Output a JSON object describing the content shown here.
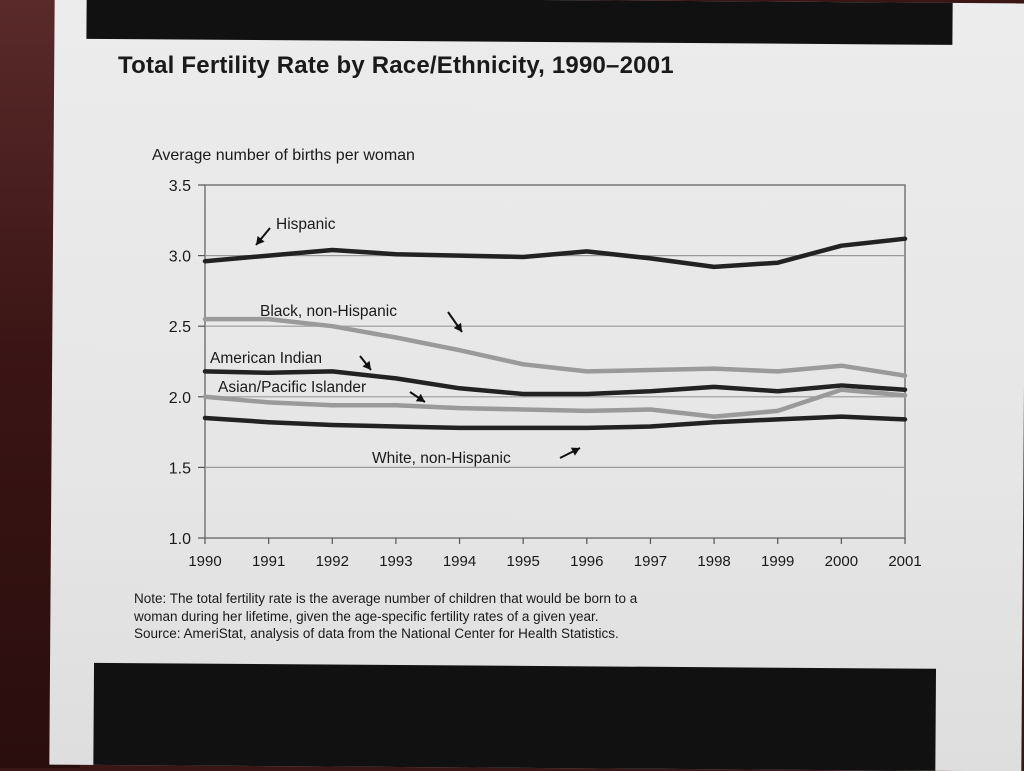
{
  "chart_data": {
    "type": "line",
    "title": "Total Fertility Rate by Race/Ethnicity, 1990–2001",
    "ylabel": "Average number of births per woman",
    "xlabel": "",
    "ylim": [
      1.0,
      3.5
    ],
    "yticks": [
      "1.0",
      "1.5",
      "2.0",
      "2.5",
      "3.0",
      "3.5"
    ],
    "categories": [
      "1990",
      "1991",
      "1992",
      "1993",
      "1994",
      "1995",
      "1996",
      "1997",
      "1998",
      "1999",
      "2000",
      "2001"
    ],
    "series": [
      {
        "name": "Hispanic",
        "color": "#222222",
        "values": [
          2.96,
          3.0,
          3.04,
          3.01,
          3.0,
          2.99,
          3.03,
          2.98,
          2.92,
          2.95,
          3.07,
          3.12
        ]
      },
      {
        "name": "Black, non-Hispanic",
        "color": "#9a9a9a",
        "values": [
          2.55,
          2.55,
          2.5,
          2.42,
          2.33,
          2.23,
          2.18,
          2.19,
          2.2,
          2.18,
          2.22,
          2.15
        ]
      },
      {
        "name": "American Indian",
        "color": "#222222",
        "values": [
          2.18,
          2.17,
          2.18,
          2.13,
          2.06,
          2.02,
          2.02,
          2.04,
          2.07,
          2.04,
          2.08,
          2.05
        ]
      },
      {
        "name": "Asian/Pacific Islander",
        "color": "#9a9a9a",
        "values": [
          2.0,
          1.96,
          1.94,
          1.94,
          1.92,
          1.91,
          1.9,
          1.91,
          1.86,
          1.9,
          2.05,
          2.01
        ]
      },
      {
        "name": "White, non-Hispanic",
        "color": "#222222",
        "values": [
          1.85,
          1.82,
          1.8,
          1.79,
          1.78,
          1.78,
          1.78,
          1.79,
          1.82,
          1.84,
          1.86,
          1.84
        ]
      }
    ],
    "annotations": [
      "Hispanic",
      "Black, non-Hispanic",
      "American Indian",
      "Asian/Pacific Islander",
      "White, non-Hispanic"
    ],
    "grid": true
  },
  "note": {
    "line1": "Note: The total fertility rate is the average number of children that would be born to a",
    "line2": "woman during her lifetime, given the age-specific fertility rates of a given year.",
    "line3": "Source: AmeriStat, analysis of data from the National Center for Health Statistics."
  }
}
